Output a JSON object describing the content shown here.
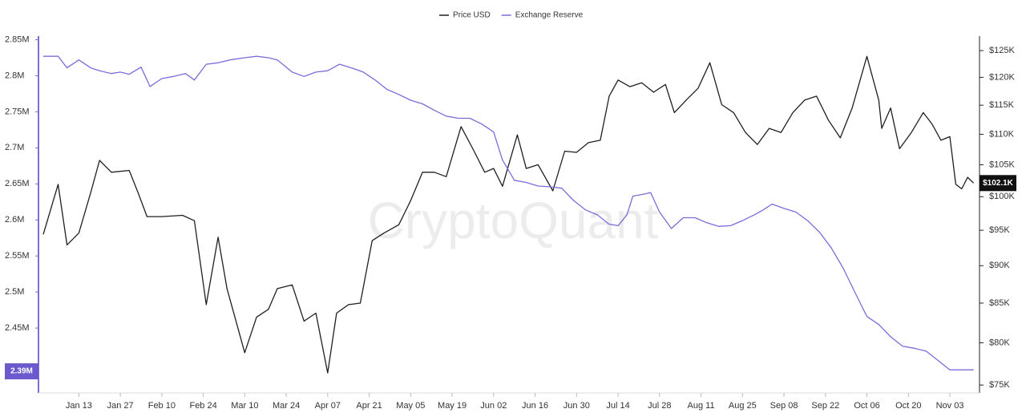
{
  "chart_data": {
    "type": "line",
    "watermark": "CryptoQuant",
    "xlim": [
      "Jan 01",
      "Nov 13"
    ],
    "xticks": [
      "Jan 13",
      "Jan 27",
      "Feb 10",
      "Feb 24",
      "Mar 10",
      "Mar 24",
      "Apr 07",
      "Apr 21",
      "May 05",
      "May 19",
      "Jun 02",
      "Jun 16",
      "Jun 30",
      "Jul 14",
      "Jul 28",
      "Aug 11",
      "Aug 25",
      "Sep 08",
      "Sep 22",
      "Oct 06",
      "Oct 20",
      "Nov 03"
    ],
    "ylim": [
      2360000,
      2855000
    ],
    "yticks": [
      {
        "value": 2450000,
        "label": "2.45M"
      },
      {
        "value": 2500000,
        "label": "2.5M"
      },
      {
        "value": 2550000,
        "label": "2.55M"
      },
      {
        "value": 2600000,
        "label": "2.6M"
      },
      {
        "value": 2650000,
        "label": "2.65M"
      },
      {
        "value": 2700000,
        "label": "2.7M"
      },
      {
        "value": 2750000,
        "label": "2.75M"
      },
      {
        "value": 2800000,
        "label": "2.8M"
      },
      {
        "value": 2850000,
        "label": "2.85M"
      }
    ],
    "y2lim": [
      74100,
      127800
    ],
    "y2_log": true,
    "y2ticks": [
      {
        "value": 75000,
        "label": "$75K"
      },
      {
        "value": 80000,
        "label": "$80K"
      },
      {
        "value": 85000,
        "label": "$85K"
      },
      {
        "value": 90000,
        "label": "$90K"
      },
      {
        "value": 95000,
        "label": "$95K"
      },
      {
        "value": 100000,
        "label": "$100K"
      },
      {
        "value": 105000,
        "label": "$105K"
      },
      {
        "value": 110000,
        "label": "$110K"
      },
      {
        "value": 115000,
        "label": "$115K"
      },
      {
        "value": 120000,
        "label": "$120K"
      },
      {
        "value": 125000,
        "label": "$125K"
      }
    ],
    "annotations": [
      {
        "axis": "y",
        "value": 2390000,
        "label": "2.39M",
        "color": "#6a5acd"
      },
      {
        "axis": "y2",
        "value": 102100,
        "label": "$102.1K",
        "color": "#111111"
      }
    ],
    "series": [
      {
        "name": "Price USD",
        "color": "#1f1f1f",
        "axis": "y2",
        "x": [
          "Jan 01",
          "Jan 06",
          "Jan 09",
          "Jan 13",
          "Jan 17",
          "Jan 20",
          "Jan 24",
          "Jan 30",
          "Feb 02",
          "Feb 05",
          "Feb 10",
          "Feb 17",
          "Feb 21",
          "Feb 25",
          "Mar 01",
          "Mar 04",
          "Mar 10",
          "Mar 14",
          "Mar 18",
          "Mar 21",
          "Mar 26",
          "Mar 30",
          "Apr 03",
          "Apr 07",
          "Apr 10",
          "Apr 14",
          "Apr 18",
          "Apr 22",
          "Apr 26",
          "May 01",
          "May 05",
          "May 09",
          "May 13",
          "May 17",
          "May 22",
          "May 26",
          "May 30",
          "Jun 02",
          "Jun 05",
          "Jun 10",
          "Jun 13",
          "Jun 17",
          "Jun 22",
          "Jun 26",
          "Jun 30",
          "Jul 04",
          "Jul 08",
          "Jul 11",
          "Jul 14",
          "Jul 18",
          "Jul 22",
          "Jul 26",
          "Jul 30",
          "Aug 02",
          "Aug 06",
          "Aug 10",
          "Aug 14",
          "Aug 18",
          "Aug 22",
          "Aug 26",
          "Aug 30",
          "Sep 03",
          "Sep 07",
          "Sep 11",
          "Sep 15",
          "Sep 19",
          "Sep 23",
          "Sep 27",
          "Oct 01",
          "Oct 06",
          "Oct 10",
          "Oct 11",
          "Oct 14",
          "Oct 17",
          "Oct 21",
          "Oct 25",
          "Oct 28",
          "Oct 31",
          "Nov 03",
          "Nov 05",
          "Nov 07",
          "Nov 09",
          "Nov 11"
        ],
        "values": [
          94400,
          101900,
          92900,
          94600,
          100600,
          105700,
          103800,
          104100,
          100600,
          97000,
          97000,
          97200,
          96400,
          84800,
          94000,
          86900,
          78800,
          83200,
          84200,
          86900,
          87400,
          82700,
          83700,
          76400,
          83700,
          84800,
          85000,
          93500,
          94600,
          95800,
          99400,
          103800,
          103800,
          103100,
          111300,
          107600,
          103800,
          104400,
          101600,
          109900,
          104400,
          105000,
          100900,
          107200,
          107000,
          108600,
          109000,
          116600,
          119500,
          118300,
          119000,
          117300,
          118700,
          113700,
          115900,
          118000,
          122700,
          115100,
          113700,
          110300,
          108300,
          111000,
          110300,
          113700,
          115900,
          116600,
          112400,
          109400,
          114500,
          123900,
          115900,
          111000,
          114500,
          107600,
          110300,
          113700,
          111700,
          109000,
          109600,
          101900,
          101200,
          103000,
          102100
        ]
      },
      {
        "name": "Exchange Reserve",
        "color": "#7b6cd9",
        "axis": "y",
        "x": [
          "Jan 01",
          "Jan 06",
          "Jan 09",
          "Jan 13",
          "Jan 17",
          "Jan 20",
          "Jan 24",
          "Jan 27",
          "Jan 30",
          "Feb 03",
          "Feb 06",
          "Feb 10",
          "Feb 14",
          "Feb 18",
          "Feb 21",
          "Feb 25",
          "Mar 01",
          "Mar 05",
          "Mar 10",
          "Mar 14",
          "Mar 18",
          "Mar 21",
          "Mar 26",
          "Mar 30",
          "Apr 03",
          "Apr 07",
          "Apr 11",
          "Apr 15",
          "Apr 19",
          "Apr 23",
          "Apr 27",
          "May 01",
          "May 05",
          "May 09",
          "May 13",
          "May 17",
          "May 21",
          "May 25",
          "May 29",
          "Jun 02",
          "Jun 05",
          "Jun 09",
          "Jun 13",
          "Jun 17",
          "Jun 21",
          "Jun 25",
          "Jun 29",
          "Jul 03",
          "Jul 07",
          "Jul 11",
          "Jul 14",
          "Jul 17",
          "Jul 19",
          "Jul 23",
          "Jul 25",
          "Jul 28",
          "Aug 01",
          "Aug 05",
          "Aug 09",
          "Aug 13",
          "Aug 17",
          "Aug 21",
          "Aug 25",
          "Aug 29",
          "Sep 01",
          "Sep 04",
          "Sep 08",
          "Sep 12",
          "Sep 16",
          "Sep 20",
          "Sep 24",
          "Sep 28",
          "Oct 02",
          "Oct 06",
          "Oct 10",
          "Oct 14",
          "Oct 18",
          "Oct 22",
          "Oct 26",
          "Oct 30",
          "Nov 03",
          "Nov 07",
          "Nov 11"
        ],
        "values": [
          2827000,
          2827000,
          2811000,
          2822000,
          2811000,
          2807000,
          2803000,
          2805000,
          2802000,
          2812000,
          2785000,
          2796000,
          2799000,
          2803000,
          2794000,
          2816000,
          2818000,
          2822000,
          2825000,
          2827000,
          2825000,
          2822000,
          2805000,
          2799000,
          2805000,
          2807000,
          2816000,
          2811000,
          2805000,
          2794000,
          2781000,
          2774000,
          2766000,
          2761000,
          2752000,
          2744000,
          2741000,
          2741000,
          2733000,
          2722000,
          2683000,
          2655000,
          2652000,
          2647000,
          2646000,
          2644000,
          2627000,
          2614000,
          2607000,
          2594000,
          2592000,
          2607000,
          2633000,
          2636000,
          2638000,
          2611000,
          2588000,
          2603000,
          2603000,
          2596000,
          2591000,
          2592000,
          2599000,
          2607000,
          2614000,
          2622000,
          2616000,
          2611000,
          2599000,
          2583000,
          2561000,
          2533000,
          2499000,
          2466000,
          2455000,
          2438000,
          2425000,
          2422000,
          2418000,
          2405000,
          2392000,
          2392000,
          2392000
        ]
      }
    ]
  }
}
